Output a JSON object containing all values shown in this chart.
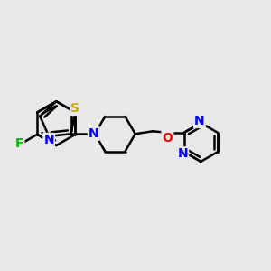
{
  "background_color": "#e8e8e8",
  "bond_color": "#000000",
  "atom_colors": {
    "F": "#00bb00",
    "S": "#ccaa00",
    "N": "#0000ff",
    "O": "#ff0000",
    "C": "#000000"
  },
  "bond_width": 1.8,
  "figsize": [
    3.0,
    3.0
  ],
  "dpi": 100,
  "xlim": [
    0,
    10
  ],
  "ylim": [
    0,
    10
  ]
}
